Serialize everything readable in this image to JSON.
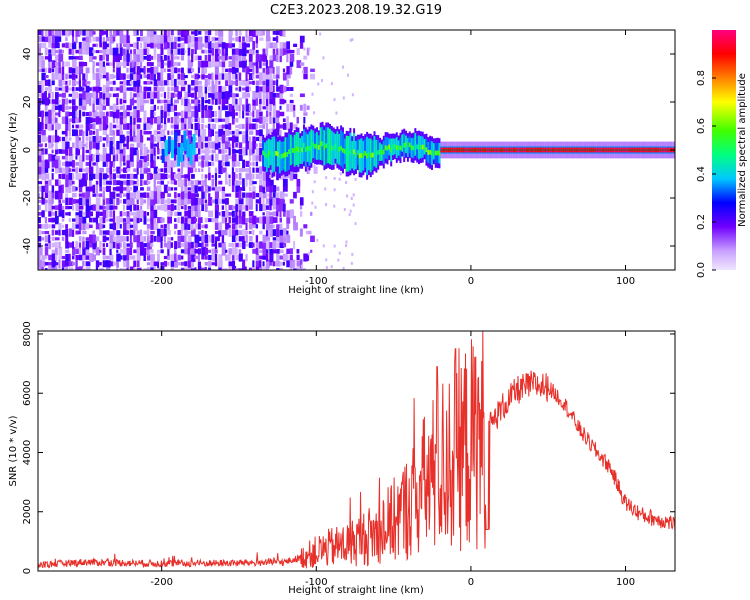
{
  "title": "C2E3.2023.208.19.32.G19",
  "colors": {
    "snr_line": "#e8302a",
    "background": "#ffffff",
    "axis": "#000000"
  },
  "chart_data": [
    {
      "type": "heatmap",
      "xlabel": "Height of straight line (km)",
      "ylabel": "Frequency (Hz)",
      "xlim": [
        -280,
        132
      ],
      "ylim": [
        -50,
        50
      ],
      "xticks": [
        -200,
        -100,
        0,
        100
      ],
      "yticks": [
        -40,
        -20,
        0,
        20,
        40
      ],
      "grid": false,
      "colorbar": {
        "label": "Normalized spectral amplitude",
        "range": [
          0,
          1
        ],
        "ticks": [
          0.0,
          0.2,
          0.4,
          0.6,
          0.8
        ],
        "colormap": "rainbow (white/violet low → blue → cyan → green → yellow → red → magenta high)"
      },
      "description_of_signal": "broadband low-amplitude noise for heights below about -110 km; narrow signal band near 0 Hz between about -130 km and +130 km, strongest (0.9–1.0) above about -20 km"
    },
    {
      "type": "line",
      "xlabel": "Height of straight line (km)",
      "ylabel": "SNR (10 * v/v)",
      "xlim": [
        -280,
        132
      ],
      "ylim": [
        0,
        8100
      ],
      "xticks": [
        -200,
        -100,
        0,
        100
      ],
      "yticks": [
        0,
        2000,
        4000,
        6000,
        8000
      ],
      "grid": false,
      "series": [
        {
          "x": [
            -280,
            -250,
            -200,
            -150,
            -120,
            -110,
            -100,
            -90,
            -80,
            -70,
            -60,
            -50,
            -40,
            -30,
            -20,
            -10,
            0,
            10,
            20,
            30,
            40,
            50,
            60,
            70,
            80,
            90,
            100,
            110,
            120,
            132
          ],
          "y": [
            200,
            300,
            250,
            270,
            300,
            450,
            650,
            800,
            900,
            1100,
            1300,
            1700,
            2200,
            2900,
            3500,
            4000,
            4300,
            4700,
            5500,
            6100,
            6300,
            6200,
            5700,
            4800,
            4100,
            3500,
            2300,
            1900,
            1750,
            1600
          ]
        }
      ],
      "spikes": [
        {
          "x": -10,
          "y": 7500
        },
        {
          "x": -22,
          "y": 6900
        },
        {
          "x": 11,
          "y": 8100
        }
      ]
    }
  ]
}
